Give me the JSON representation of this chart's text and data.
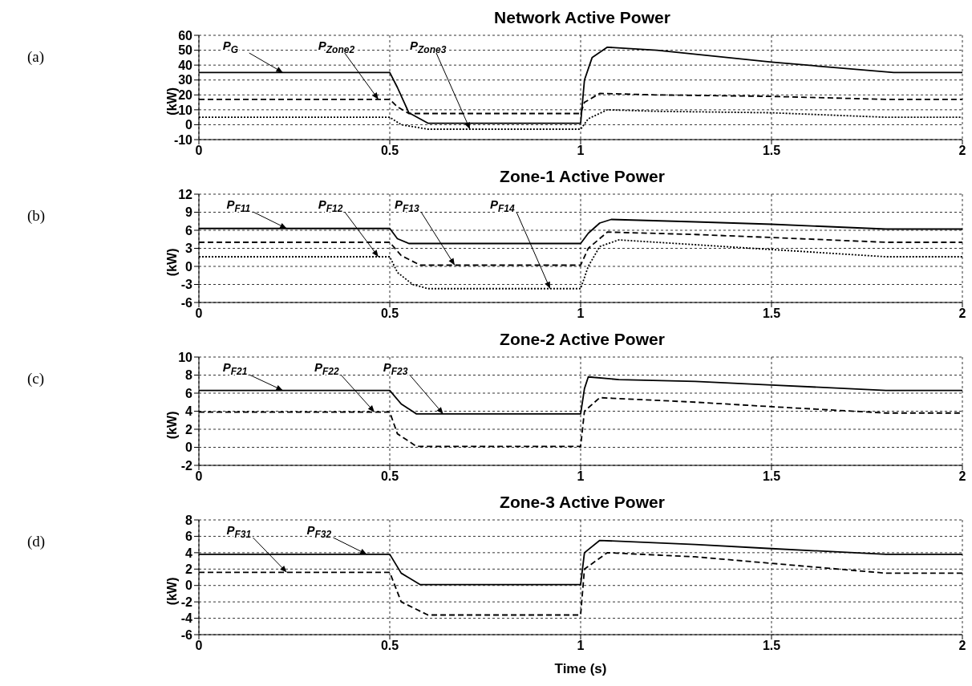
{
  "chart_data": [
    {
      "type": "line",
      "title": "Network Active Power",
      "ylabel": "(kW)",
      "xlim": [
        0,
        2
      ],
      "xticks": [
        0,
        0.5,
        1,
        1.5,
        2
      ],
      "ylim": [
        -10,
        60
      ],
      "yticks": [
        -10,
        0,
        10,
        20,
        30,
        40,
        50,
        60
      ],
      "grid": true,
      "annotations": [
        "(a)",
        {
          "text": "P$_{G}$",
          "x": 0.22,
          "y": 35
        },
        {
          "text": "P$_{Zone2}$",
          "x": 0.47,
          "y": 17
        },
        {
          "text": "P$_{Zone3}$",
          "x": 0.71,
          "y": -3
        }
      ],
      "series": [
        {
          "color": "#000000",
          "line_style": "solid",
          "x": [
            0,
            0.5,
            0.52,
            0.55,
            0.6,
            1.0,
            1.01,
            1.03,
            1.07,
            1.2,
            1.5,
            1.82,
            2
          ],
          "values": [
            35,
            35,
            25,
            8,
            1,
            1,
            30,
            45,
            52,
            50,
            42,
            35,
            35
          ]
        },
        {
          "color": "#000000",
          "line_style": "dashed",
          "x": [
            0,
            0.5,
            0.52,
            0.55,
            1.0,
            1.01,
            1.05,
            1.2,
            1.5,
            1.8,
            2
          ],
          "values": [
            17,
            17,
            12,
            7.5,
            7.5,
            15,
            21,
            20,
            19,
            17,
            17
          ]
        },
        {
          "color": "#000000",
          "line_style": "dotted",
          "x": [
            0,
            0.5,
            0.53,
            0.6,
            1.0,
            1.02,
            1.07,
            1.2,
            1.5,
            1.8,
            2
          ],
          "values": [
            5,
            5,
            0,
            -3,
            -3,
            4,
            10,
            9,
            8,
            5,
            5
          ]
        }
      ]
    },
    {
      "type": "line",
      "title": "Zone-1 Active Power",
      "ylabel": "(kW)",
      "xlim": [
        0,
        2
      ],
      "xticks": [
        0,
        0.5,
        1,
        1.5,
        2
      ],
      "ylim": [
        -6,
        12
      ],
      "yticks": [
        -6,
        -3,
        0,
        3,
        6,
        9,
        12
      ],
      "grid": true,
      "annotations": [
        "(b)",
        {
          "text": "P$_{F11}$",
          "x": 0.23,
          "y": 6.3
        },
        {
          "text": "P$_{F12}$",
          "x": 0.47,
          "y": 1.6
        },
        {
          "text": "P$_{F13}$",
          "x": 0.67,
          "y": 0.2
        },
        {
          "text": "P$_{F14}$",
          "x": 0.92,
          "y": -3.7
        }
      ],
      "series": [
        {
          "color": "#000000",
          "line_style": "solid",
          "x": [
            0,
            0.5,
            0.52,
            0.55,
            1.0,
            1.02,
            1.05,
            1.08,
            1.3,
            1.5,
            1.8,
            2
          ],
          "values": [
            6.3,
            6.3,
            4.6,
            3.8,
            3.8,
            5.5,
            7.2,
            7.8,
            7.4,
            7,
            6.2,
            6.2
          ]
        },
        {
          "color": "#000000",
          "line_style": "dashed",
          "x": [
            0,
            0.5,
            0.53,
            0.58,
            1.0,
            1.02,
            1.07,
            1.3,
            1.5,
            1.8,
            2
          ],
          "values": [
            4,
            4,
            1.8,
            0.2,
            0.2,
            3,
            5.7,
            5.3,
            4.8,
            4,
            4
          ]
        },
        {
          "color": "#000000",
          "line_style": "dotted",
          "x": [
            0,
            0.5,
            0.52,
            0.56,
            0.6,
            1.0,
            1.02,
            1.05,
            1.1,
            1.3,
            1.5,
            1.8,
            2
          ],
          "values": [
            1.6,
            1.6,
            -1,
            -3,
            -3.7,
            -3.7,
            0,
            3.3,
            4.4,
            3.6,
            2.8,
            1.6,
            1.6
          ]
        }
      ]
    },
    {
      "type": "line",
      "title": "Zone-2 Active Power",
      "ylabel": "(kW)",
      "xlim": [
        0,
        2
      ],
      "xticks": [
        0,
        0.5,
        1,
        1.5,
        2
      ],
      "ylim": [
        -2,
        10
      ],
      "yticks": [
        -2,
        0,
        2,
        4,
        6,
        8,
        10
      ],
      "grid": true,
      "annotations": [
        "(c)",
        {
          "text": "P$_{F21}$",
          "x": 0.22,
          "y": 6.3
        },
        {
          "text": "P$_{F22}$",
          "x": 0.46,
          "y": 3.9
        },
        {
          "text": "P$_{F23}$",
          "x": 0.64,
          "y": 3.7
        }
      ],
      "series": [
        {
          "color": "#000000",
          "line_style": "solid",
          "x": [
            0,
            0.5,
            0.53,
            0.57,
            1.0,
            1.01,
            1.02,
            1.1,
            1.3,
            1.5,
            1.8,
            2
          ],
          "values": [
            6.3,
            6.3,
            4.8,
            3.7,
            3.7,
            6.5,
            7.8,
            7.5,
            7.3,
            6.9,
            6.3,
            6.3
          ]
        },
        {
          "color": "#000000",
          "line_style": "dashed",
          "x": [
            0,
            0.5,
            0.52,
            0.57,
            1.0,
            1.01,
            1.05,
            1.3,
            1.5,
            1.8,
            2
          ],
          "values": [
            3.9,
            3.9,
            1.5,
            0.1,
            0.1,
            4,
            5.5,
            5,
            4.5,
            3.8,
            3.8
          ]
        }
      ]
    },
    {
      "type": "line",
      "title": "Zone-3 Active Power",
      "ylabel": "(kW)",
      "xlabel": "Time (s)",
      "xlim": [
        0,
        2
      ],
      "xticks": [
        0,
        0.5,
        1,
        1.5,
        2
      ],
      "ylim": [
        -6,
        8
      ],
      "yticks": [
        -6,
        -4,
        -2,
        0,
        2,
        4,
        6,
        8
      ],
      "grid": true,
      "annotations": [
        "(d)",
        {
          "text": "P$_{F31}$",
          "x": 0.23,
          "y": 1.6
        },
        {
          "text": "P$_{F32}$",
          "x": 0.44,
          "y": 3.8
        }
      ],
      "series": [
        {
          "color": "#000000",
          "line_style": "solid",
          "x": [
            0,
            0.5,
            0.53,
            0.58,
            1.0,
            1.01,
            1.05,
            1.3,
            1.5,
            1.8,
            2
          ],
          "values": [
            3.8,
            3.8,
            1.5,
            0.1,
            0.1,
            4,
            5.5,
            5,
            4.5,
            3.8,
            3.8
          ]
        },
        {
          "color": "#000000",
          "line_style": "dashed",
          "x": [
            0,
            0.5,
            0.53,
            0.6,
            1.0,
            1.01,
            1.07,
            1.3,
            1.5,
            1.8,
            2
          ],
          "values": [
            1.6,
            1.6,
            -2,
            -3.6,
            -3.6,
            2,
            4,
            3.5,
            2.7,
            1.5,
            1.5
          ]
        }
      ]
    }
  ]
}
